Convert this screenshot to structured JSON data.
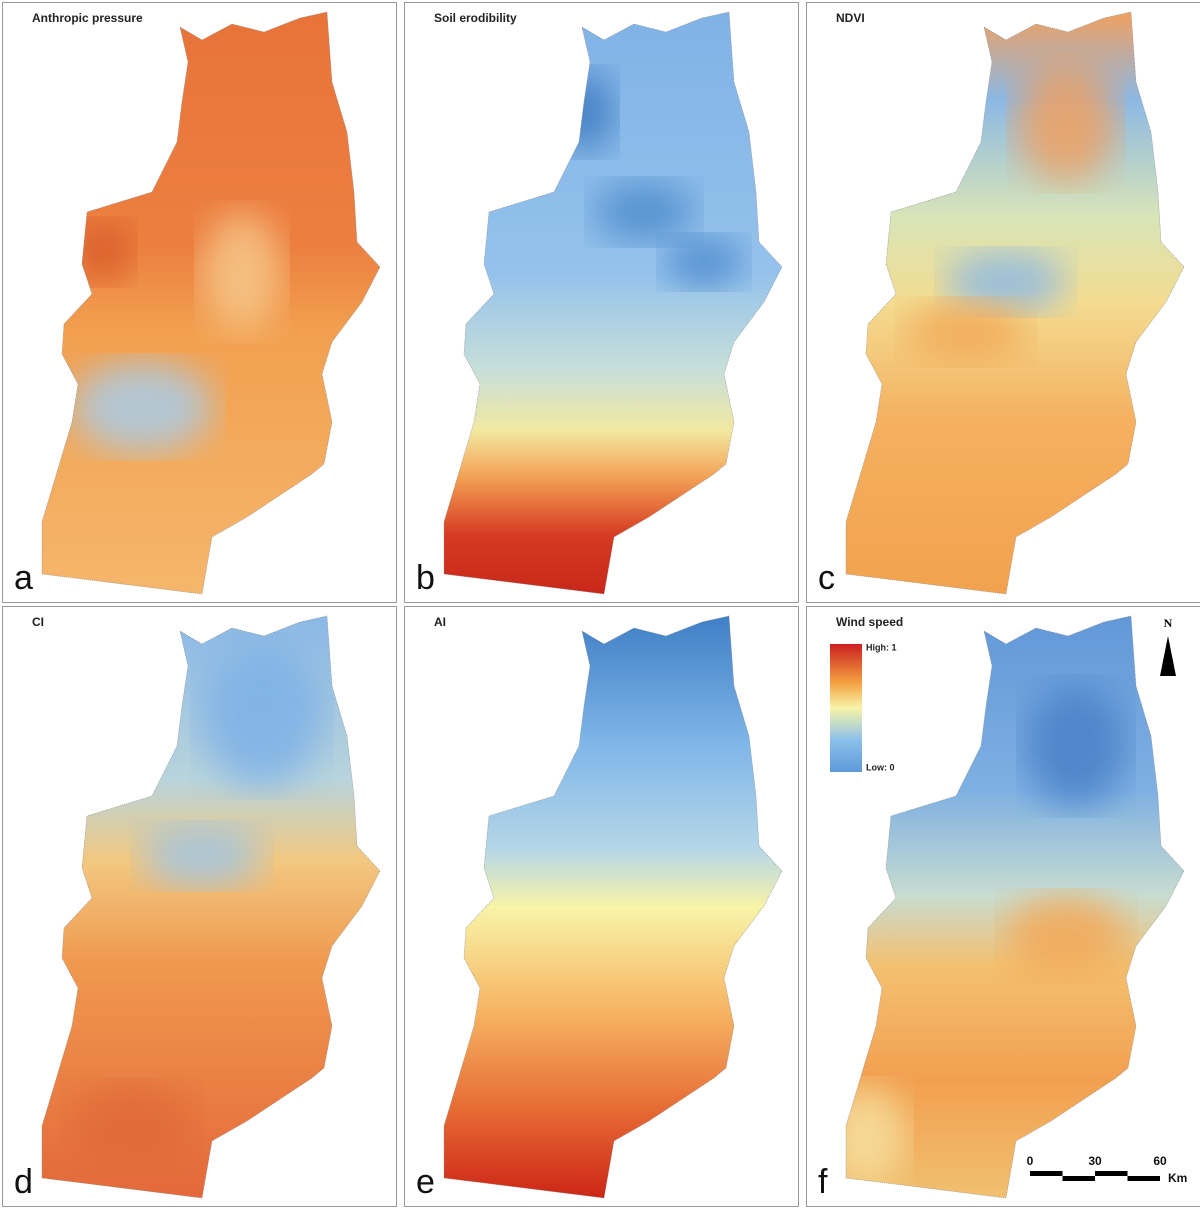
{
  "panels": [
    {
      "title": "Anthropic pressure",
      "letter": "a"
    },
    {
      "title": "Soil erodibility",
      "letter": "b"
    },
    {
      "title": "NDVI",
      "letter": "c"
    },
    {
      "title": "CI",
      "letter": "d"
    },
    {
      "title": "AI",
      "letter": "e"
    },
    {
      "title": "Wind speed",
      "letter": "f"
    }
  ],
  "legend": {
    "high": "High: 1",
    "low": "Low: 0"
  },
  "north": "N",
  "scale_bar": {
    "ticks": [
      0,
      30,
      60
    ],
    "unit": "Km"
  }
}
